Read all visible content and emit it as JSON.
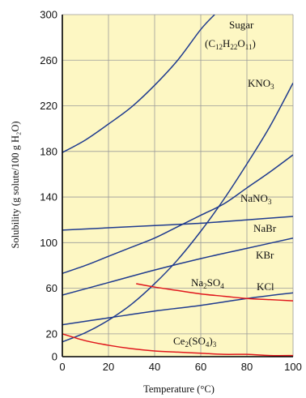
{
  "chart_data": {
    "type": "line",
    "title": "",
    "xlabel": "Temperature (°C)",
    "ylabel": "Solubility (g solute/100 g H₂O)",
    "xlim": [
      0,
      100
    ],
    "ylim": [
      0,
      300
    ],
    "xticks": [
      0,
      20,
      40,
      60,
      80,
      100
    ],
    "yticks": [
      0,
      20,
      60,
      100,
      140,
      180,
      220,
      260,
      300
    ],
    "grid": true,
    "background_color": "#fdf7c3",
    "grid_color": "#9a9a9a",
    "series": [
      {
        "name": "Sugar (C12H22O11)",
        "label_parts": [
          [
            "Sugar",
            ""
          ]
        ],
        "label_parts_2": [
          [
            "(C",
            ""
          ],
          [
            "12",
            "sub"
          ],
          [
            "H",
            ""
          ],
          [
            "22",
            "sub"
          ],
          [
            "O",
            ""
          ],
          [
            "11",
            "sub"
          ],
          [
            ")",
            ""
          ]
        ],
        "color": "#1f3b8f",
        "x": [
          0,
          10,
          20,
          30,
          40,
          50,
          60,
          66
        ],
        "y": [
          179,
          190,
          204,
          219,
          238,
          260,
          287,
          300
        ]
      },
      {
        "name": "KNO3",
        "label_parts": [
          [
            "KNO",
            ""
          ],
          [
            "3",
            "sub"
          ]
        ],
        "color": "#1f3b8f",
        "x": [
          0,
          10,
          20,
          30,
          40,
          50,
          60,
          70,
          80,
          90,
          100
        ],
        "y": [
          13,
          21,
          32,
          46,
          64,
          85,
          110,
          138,
          169,
          202,
          240
        ]
      },
      {
        "name": "NaNO3",
        "label_parts": [
          [
            "NaNO",
            ""
          ],
          [
            "3",
            "sub"
          ]
        ],
        "color": "#1f3b8f",
        "x": [
          0,
          10,
          20,
          30,
          40,
          50,
          60,
          70,
          80,
          90,
          100
        ],
        "y": [
          73,
          80,
          88,
          96,
          104,
          114,
          124,
          134,
          148,
          162,
          177
        ]
      },
      {
        "name": "NaBr",
        "label_parts": [
          [
            "NaBr",
            ""
          ]
        ],
        "color": "#1f3b8f",
        "x": [
          0,
          20,
          40,
          60,
          80,
          100
        ],
        "y": [
          111,
          113,
          115,
          117,
          120,
          123
        ]
      },
      {
        "name": "KBr",
        "label_parts": [
          [
            "KBr",
            ""
          ]
        ],
        "color": "#1f3b8f",
        "x": [
          0,
          20,
          40,
          60,
          80,
          100
        ],
        "y": [
          54,
          65,
          76,
          86,
          95,
          104
        ]
      },
      {
        "name": "KCl",
        "label_parts": [
          [
            "KCl",
            ""
          ]
        ],
        "color": "#1f3b8f",
        "x": [
          0,
          20,
          40,
          60,
          80,
          100
        ],
        "y": [
          28,
          34,
          40,
          45,
          51,
          56
        ]
      },
      {
        "name": "Na2SO4",
        "label_parts": [
          [
            "Na",
            ""
          ],
          [
            "2",
            "sub"
          ],
          [
            "SO",
            ""
          ],
          [
            "4",
            "sub"
          ]
        ],
        "color": "#e0161c",
        "x": [
          32,
          40,
          50,
          60,
          70,
          80,
          90,
          100
        ],
        "y": [
          64,
          61,
          58,
          55,
          53,
          51,
          50,
          49
        ]
      },
      {
        "name": "Ce2(SO4)3",
        "label_parts": [
          [
            "Ce",
            ""
          ],
          [
            "2",
            "sub"
          ],
          [
            "(SO",
            ""
          ],
          [
            "4",
            "sub"
          ],
          [
            ")",
            ""
          ],
          [
            "3",
            "sub"
          ]
        ],
        "color": "#e0161c",
        "x": [
          0,
          10,
          20,
          30,
          40,
          50,
          60,
          70,
          80,
          90,
          100
        ],
        "y": [
          20,
          14,
          10,
          7,
          5,
          4,
          3,
          2,
          2,
          1,
          1
        ]
      }
    ]
  }
}
